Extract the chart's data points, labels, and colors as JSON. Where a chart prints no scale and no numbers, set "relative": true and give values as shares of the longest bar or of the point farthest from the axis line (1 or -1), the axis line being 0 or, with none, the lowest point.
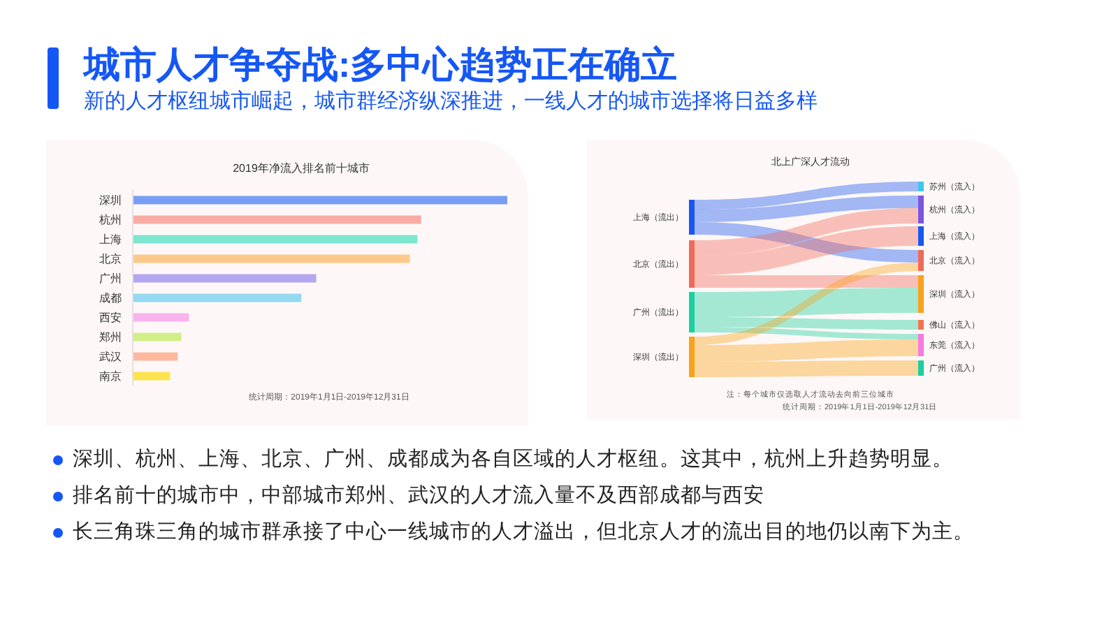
{
  "chart_data": [
    {
      "type": "other",
      "title": "城市人才争夺战:多中心趋势正在确立",
      "subtitle": "新的人才枢纽城市崛起，城市群经济纵深推进，一线人才的城市选择将日益多样"
    },
    {
      "type": "bar",
      "orientation": "horizontal",
      "relative": true,
      "title": "2019年净流入排名前十城市",
      "categories": [
        "深圳",
        "杭州",
        "上海",
        "北京",
        "广州",
        "成都",
        "西安",
        "郑州",
        "武汉",
        "南京"
      ],
      "values": [
        1,
        0.77,
        0.76,
        0.74,
        0.49,
        0.45,
        0.15,
        0.13,
        0.12,
        0.1
      ],
      "colors": [
        "#7b9ef5",
        "#f9aca3",
        "#7ee5cf",
        "#fdc98a",
        "#b4a7ef",
        "#94d9ef",
        "#f9b3ef",
        "#d2ef88",
        "#fcb99f",
        "#fde350"
      ],
      "annotations": [
        "统计周期：2019年1月1日-2019年12月31日"
      ]
    },
    {
      "type": "other",
      "title": "北上广深人才流动",
      "categories": [
        "上海（流出）",
        "北京（流出）",
        "广州（流出）",
        "深圳（流出）"
      ],
      "y2_categories": [
        "苏州（流入）",
        "杭州（流入）",
        "上海（流入）",
        "北京（流入）",
        "深圳（流入）",
        "佛山（流入）",
        "东莞（流入）",
        "广州（流入）"
      ],
      "annotations": [
        "注：每个城市仅选取人才流动去向前三位城市",
        "统计周期：2019年1月1日-2019年12月31日"
      ]
    },
    {
      "type": "other",
      "annotations": [
        "深圳、杭州、上海、北京、广州、成都成为各自区域的人才枢纽。这其中，杭州上升趋势明显。",
        "排名前十的城市中，中部城市郑州、武汉的人才流入量不及西部成都与西安",
        "长三角珠三角的城市群承接了中心一线城市的人才溢出，但北京人才的流出目的地仍以南下为主。"
      ]
    }
  ]
}
